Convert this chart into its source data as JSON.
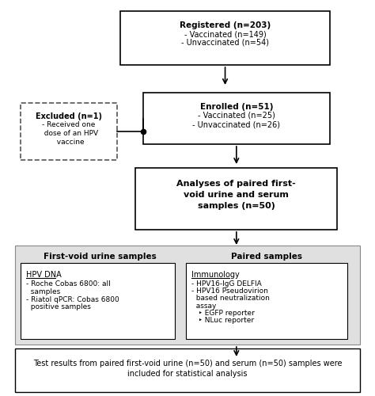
{
  "fig_width": 4.74,
  "fig_height": 5.0,
  "dpi": 100,
  "bg_color": "#ffffff",
  "gray_bg": "#e0e0e0",
  "registered_title": "Registered (n=203)",
  "registered_lines": [
    "- Vaccinated (n=149)",
    "- Unvaccinated (n=54)"
  ],
  "enrolled_title": "Enrolled (n=51)",
  "enrolled_lines": [
    "- Vaccinated (n=25)",
    "- Unvaccinated (n=26)"
  ],
  "excluded_title": "Excluded (n=1)",
  "excluded_lines": [
    "- Received one",
    "  dose of an HPV",
    "  vaccine"
  ],
  "analyses_title": "Analyses of paired first-\nvoid urine and serum\nsamples (n=50)",
  "left_section_title": "First-void urine samples",
  "left_box_title": "HPV DNA",
  "left_box_lines": [
    "- Roche Cobas 6800: all",
    "  samples",
    "- Riatol qPCR: Cobas 6800",
    "  positive samples"
  ],
  "right_section_title": "Paired samples",
  "right_box_title": "Immunology",
  "right_box_lines": [
    "- HPV16-IgG DELFIA",
    "- HPV16 Pseudovirion",
    "  based neutralization",
    "  assay",
    "   ‣ EGFP reporter",
    "   ‣ NLuc reporter"
  ],
  "bottom_text": "Test results from paired first-void urine (n=50) and serum (n=50) samples were\nincluded for statistical analysis"
}
